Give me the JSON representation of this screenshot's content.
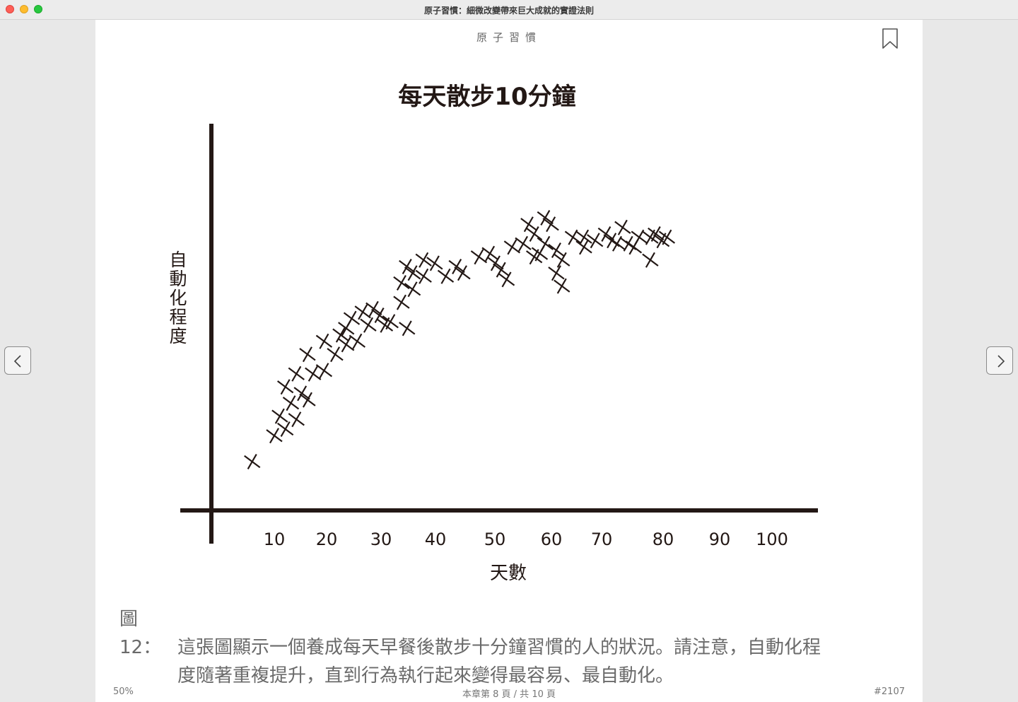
{
  "window": {
    "title": "原子習慣：細微改變帶來巨大成就的實證法則"
  },
  "page": {
    "running_head": "原子習慣",
    "caption_label": "圖12：",
    "caption_line1": "這張圖顯示一個養成每天早餐後散步十分鐘習慣的人的狀況。請注意，自動化程",
    "caption_line2": "度隨著重複提升，直到行為執行起來變得最容易、最自動化。"
  },
  "footer": {
    "zoom": "50%",
    "page_info": "本章第 8 頁 / 共 10 頁",
    "location": "#2107"
  },
  "icons": {
    "bookmark": "bookmark-icon",
    "prev": "chevron-left-icon",
    "next": "chevron-right-icon"
  },
  "chart_data": {
    "type": "scatter",
    "title": "每天散步10分鐘",
    "xlabel": "天數",
    "ylabel": "自動化程度",
    "x_ticks": [
      10,
      20,
      30,
      40,
      50,
      60,
      70,
      80,
      90,
      100
    ],
    "xlim": [
      0,
      110
    ],
    "ylim": [
      0,
      100
    ],
    "grid": false,
    "color": "#231815",
    "series": [
      {
        "points": [
          [
            6,
            15
          ],
          [
            10,
            23
          ],
          [
            12,
            25
          ],
          [
            14,
            28
          ],
          [
            11,
            29
          ],
          [
            13,
            33
          ],
          [
            16,
            34
          ],
          [
            15,
            36
          ],
          [
            12,
            38
          ],
          [
            14,
            42
          ],
          [
            17,
            42
          ],
          [
            16,
            48
          ],
          [
            19,
            43
          ],
          [
            21,
            48
          ],
          [
            23,
            51
          ],
          [
            25,
            52
          ],
          [
            27,
            57
          ],
          [
            30,
            57
          ],
          [
            22,
            54
          ],
          [
            19,
            52
          ],
          [
            23,
            56
          ],
          [
            24,
            59
          ],
          [
            26,
            61
          ],
          [
            28,
            62
          ],
          [
            29,
            60
          ],
          [
            34,
            56
          ],
          [
            31,
            58
          ],
          [
            33,
            64
          ],
          [
            35,
            68
          ],
          [
            33,
            70
          ],
          [
            37,
            72
          ],
          [
            35,
            73
          ],
          [
            34,
            75
          ],
          [
            37,
            77
          ],
          [
            39,
            76
          ],
          [
            41,
            72
          ],
          [
            43,
            75
          ],
          [
            44,
            73
          ],
          [
            47,
            78
          ],
          [
            49,
            79
          ],
          [
            50,
            76
          ],
          [
            51,
            74
          ],
          [
            52,
            71
          ],
          [
            55,
            82
          ],
          [
            57,
            78
          ],
          [
            53,
            81
          ],
          [
            58,
            79
          ],
          [
            59,
            82
          ],
          [
            61,
            80
          ],
          [
            62,
            77
          ],
          [
            61,
            73
          ],
          [
            62,
            69
          ],
          [
            56,
            88
          ],
          [
            57,
            85
          ],
          [
            64,
            84
          ],
          [
            66,
            84
          ],
          [
            66,
            81
          ],
          [
            68,
            83
          ],
          [
            71,
            83
          ],
          [
            70,
            85
          ],
          [
            72,
            82
          ],
          [
            74,
            82
          ],
          [
            73,
            87
          ],
          [
            76,
            84
          ],
          [
            75,
            81
          ],
          [
            78,
            84
          ],
          [
            80,
            83
          ],
          [
            81,
            84
          ],
          [
            79,
            85
          ],
          [
            78,
            77
          ],
          [
            60,
            88
          ],
          [
            59,
            90
          ]
        ]
      }
    ]
  }
}
